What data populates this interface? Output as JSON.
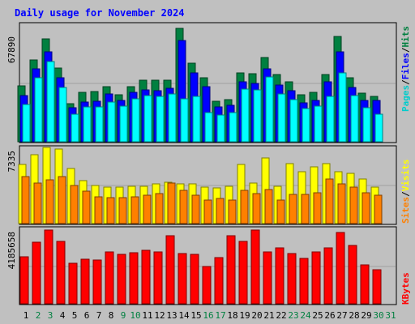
{
  "chart_data": [
    {
      "type": "bar",
      "title": "Daily usage for November 2024",
      "panel": "hits-files-pages",
      "categories": [
        "1",
        "2",
        "3",
        "4",
        "5",
        "6",
        "7",
        "8",
        "9",
        "10",
        "11",
        "12",
        "13",
        "14",
        "15",
        "16",
        "17",
        "18",
        "19",
        "20",
        "21",
        "22",
        "23",
        "24",
        "25",
        "26",
        "27",
        "28",
        "29",
        "30",
        "31"
      ],
      "ymax_label": "67890",
      "ylim": [
        0,
        67890
      ],
      "series": [
        {
          "name": "Hits",
          "color": "#008040",
          "values": [
            32500,
            47500,
            59500,
            42500,
            22000,
            28500,
            29000,
            32000,
            27000,
            32000,
            35500,
            35500,
            35500,
            65500,
            45500,
            37000,
            23500,
            24500,
            40000,
            39500,
            48500,
            39000,
            34500,
            27000,
            28500,
            39000,
            61000,
            37000,
            28000,
            26000,
            0
          ]
        },
        {
          "name": "Files",
          "color": "#0000ff",
          "values": [
            26500,
            42000,
            52000,
            37000,
            19500,
            23000,
            23500,
            27500,
            24000,
            28500,
            30000,
            29500,
            31000,
            58500,
            40000,
            32000,
            20000,
            21000,
            34500,
            33500,
            42000,
            33000,
            29500,
            22500,
            24000,
            34500,
            52000,
            31500,
            24000,
            24000,
            0
          ]
        },
        {
          "name": "Pages",
          "color": "#00ffff",
          "values": [
            21500,
            37000,
            46500,
            31500,
            16000,
            20000,
            20000,
            23000,
            20500,
            25000,
            26500,
            26000,
            27500,
            25000,
            26000,
            17000,
            15500,
            17000,
            30500,
            30000,
            37500,
            27500,
            24500,
            19000,
            20500,
            26000,
            40000,
            26500,
            19500,
            16000,
            0
          ]
        }
      ]
    },
    {
      "type": "bar",
      "panel": "visits-sites",
      "categories": [
        "1",
        "2",
        "3",
        "4",
        "5",
        "6",
        "7",
        "8",
        "9",
        "10",
        "11",
        "12",
        "13",
        "14",
        "15",
        "16",
        "17",
        "18",
        "19",
        "20",
        "21",
        "22",
        "23",
        "24",
        "25",
        "26",
        "27",
        "28",
        "29",
        "30",
        "31"
      ],
      "ymax_label": "7335",
      "ylim": [
        0,
        7335
      ],
      "series": [
        {
          "name": "Visits",
          "color": "#ffff00",
          "values": [
            5700,
            6600,
            7300,
            7200,
            5300,
            4100,
            3700,
            3500,
            3500,
            3600,
            3600,
            3800,
            4000,
            3800,
            3800,
            3500,
            3400,
            3600,
            5700,
            3900,
            6300,
            3600,
            5800,
            5000,
            5500,
            5800,
            5000,
            4800,
            4300,
            3500,
            0
          ]
        },
        {
          "name": "Sites",
          "color": "#ff8000",
          "values": [
            4500,
            3900,
            4200,
            4500,
            3700,
            3100,
            2600,
            2500,
            2500,
            2600,
            2700,
            2900,
            3900,
            3200,
            2700,
            2300,
            2400,
            2300,
            3200,
            2900,
            3300,
            2300,
            2800,
            2800,
            3000,
            4300,
            3800,
            3500,
            3000,
            2700,
            0
          ]
        }
      ]
    },
    {
      "type": "bar",
      "panel": "kbytes",
      "categories": [
        "1",
        "2",
        "3",
        "4",
        "5",
        "6",
        "7",
        "8",
        "9",
        "10",
        "11",
        "12",
        "13",
        "14",
        "15",
        "16",
        "17",
        "18",
        "19",
        "20",
        "21",
        "22",
        "23",
        "24",
        "25",
        "26",
        "27",
        "28",
        "29",
        "30",
        "31"
      ],
      "ymax_label": "4185658",
      "ylim": [
        0,
        4185658
      ],
      "series": [
        {
          "name": "KBytes",
          "color": "#ff0000",
          "values": [
            2600000,
            3400000,
            4100000,
            3450000,
            2250000,
            2460000,
            2430000,
            2900000,
            2750000,
            2850000,
            2950000,
            2900000,
            3800000,
            2800000,
            2750000,
            2050000,
            2550000,
            3800000,
            3450000,
            4100000,
            2900000,
            3100000,
            2800000,
            2500000,
            2900000,
            3100000,
            3950000,
            3250000,
            2150000,
            1900000,
            0
          ]
        }
      ]
    }
  ],
  "legend_top": [
    {
      "text": "Pages",
      "color": "#00cccc"
    },
    {
      "text": "Files",
      "color": "#0000ff"
    },
    {
      "text": "Hits",
      "color": "#008040"
    }
  ],
  "legend_mid": [
    {
      "text": "Sites",
      "color": "#ff8000"
    },
    {
      "text": "Visits",
      "color": "#ffff00"
    }
  ],
  "legend_bot": [
    {
      "text": "KBytes",
      "color": "#ff0000"
    }
  ],
  "weekend_days": [
    "2",
    "3",
    "9",
    "10",
    "16",
    "17",
    "23",
    "24",
    "30",
    "31"
  ],
  "colors": {
    "background": "#c0c0c0",
    "panel": "#c0c0c0",
    "title": "#0000ff",
    "weekday": "#000000",
    "weekend": "#008040",
    "grid": "#a0a0a0"
  }
}
